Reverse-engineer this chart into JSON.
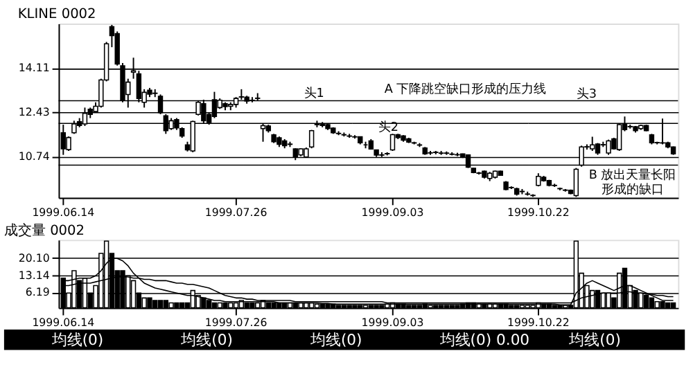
{
  "chart_data": [
    {
      "type": "candlestick",
      "title": "KLINE 0002",
      "categories": [
        "1999.06.14",
        null,
        null,
        null,
        null,
        null,
        null,
        null,
        null,
        null,
        null,
        null,
        null,
        null,
        null,
        null,
        null,
        null,
        null,
        null,
        null,
        null,
        null,
        null,
        null,
        null,
        null,
        null,
        null,
        null,
        null,
        null,
        "1999.07.26",
        null,
        null,
        null,
        null,
        null,
        null,
        null,
        null,
        null,
        null,
        null,
        null,
        null,
        null,
        null,
        null,
        null,
        null,
        null,
        null,
        null,
        null,
        null,
        null,
        null,
        null,
        null,
        null,
        "1999.09.03",
        null,
        null,
        null,
        null,
        null,
        null,
        null,
        null,
        null,
        null,
        null,
        null,
        null,
        null,
        null,
        null,
        null,
        null,
        null,
        null,
        null,
        null,
        null,
        null,
        null,
        null,
        "1999.10.22",
        null,
        null,
        null,
        null,
        null,
        null,
        null,
        null,
        null,
        null,
        null,
        null,
        null,
        null,
        null,
        null,
        null,
        null,
        null,
        null,
        null,
        null,
        null,
        null,
        null
      ],
      "ohlc": [
        [
          11.64,
          11.95,
          10.8,
          11.03
        ],
        [
          11.0,
          11.5,
          10.95,
          11.46
        ],
        [
          11.64,
          12.1,
          11.6,
          11.98
        ],
        [
          12.06,
          12.2,
          11.85,
          11.92
        ],
        [
          11.98,
          12.6,
          11.9,
          12.38
        ],
        [
          12.54,
          12.6,
          12.2,
          12.34
        ],
        [
          12.45,
          12.8,
          12.4,
          12.65
        ],
        [
          12.65,
          13.7,
          12.6,
          13.65
        ],
        [
          13.65,
          15.1,
          13.6,
          15.03
        ],
        [
          15.68,
          15.75,
          14.9,
          15.34
        ],
        [
          15.42,
          15.5,
          14.2,
          14.26
        ],
        [
          14.19,
          14.3,
          12.8,
          12.88
        ],
        [
          13.1,
          13.7,
          12.6,
          13.57
        ],
        [
          13.95,
          14.5,
          13.7,
          14.0
        ],
        [
          13.88,
          14.0,
          12.8,
          12.95
        ],
        [
          12.8,
          13.3,
          12.6,
          13.18
        ],
        [
          13.26,
          13.35,
          13.0,
          13.11
        ],
        [
          13.15,
          13.3,
          13.0,
          13.14
        ],
        [
          13.03,
          13.1,
          12.35,
          12.41
        ],
        [
          12.29,
          12.35,
          11.6,
          11.72
        ],
        [
          11.8,
          12.2,
          11.75,
          12.1
        ],
        [
          12.14,
          12.2,
          11.75,
          11.83
        ],
        [
          11.8,
          11.85,
          11.45,
          11.52
        ],
        [
          11.18,
          11.3,
          10.93,
          10.99
        ],
        [
          10.95,
          12.1,
          10.9,
          12.07
        ],
        [
          12.34,
          12.85,
          12.3,
          12.8
        ],
        [
          12.75,
          12.9,
          12.0,
          12.1
        ],
        [
          12.34,
          12.4,
          11.95,
          12.03
        ],
        [
          12.9,
          13.2,
          12.2,
          12.26
        ],
        [
          12.6,
          12.95,
          12.55,
          12.88
        ],
        [
          12.75,
          12.8,
          12.5,
          12.64
        ],
        [
          12.65,
          12.8,
          12.5,
          12.72
        ],
        [
          12.72,
          13.0,
          12.6,
          12.95
        ],
        [
          13.0,
          13.3,
          12.9,
          13.01
        ],
        [
          13.0,
          13.05,
          12.75,
          12.85
        ],
        [
          12.88,
          13.0,
          12.8,
          12.87
        ],
        [
          12.95,
          13.15,
          12.85,
          12.96
        ],
        [
          11.8,
          12.0,
          11.3,
          11.91
        ],
        [
          11.9,
          11.95,
          11.65,
          11.72
        ],
        [
          11.56,
          11.6,
          11.25,
          11.3
        ],
        [
          11.45,
          11.5,
          11.1,
          11.2
        ],
        [
          11.33,
          11.4,
          11.05,
          11.15
        ],
        [
          11.2,
          11.3,
          11.1,
          11.21
        ],
        [
          11.03,
          11.05,
          10.6,
          10.72
        ],
        [
          10.8,
          11.05,
          10.75,
          11.03
        ],
        [
          10.72,
          11.08,
          10.7,
          11.03
        ],
        [
          11.1,
          11.75,
          11.05,
          11.72
        ],
        [
          11.95,
          12.1,
          11.85,
          11.96
        ],
        [
          11.98,
          12.05,
          11.85,
          11.92
        ],
        [
          11.95,
          12.0,
          11.75,
          11.8
        ],
        [
          11.82,
          11.85,
          11.6,
          11.64
        ],
        [
          11.62,
          11.7,
          11.55,
          11.61
        ],
        [
          11.57,
          11.65,
          11.5,
          11.56
        ],
        [
          11.52,
          11.6,
          11.45,
          11.51
        ],
        [
          11.49,
          11.55,
          11.42,
          11.48
        ],
        [
          11.49,
          11.5,
          11.2,
          11.26
        ],
        [
          11.18,
          11.3,
          11.05,
          11.18
        ],
        [
          11.33,
          11.4,
          11.0,
          11.02
        ],
        [
          10.99,
          11.0,
          10.72,
          10.79
        ],
        [
          10.8,
          10.9,
          10.72,
          10.79
        ],
        [
          10.84,
          10.9,
          10.78,
          10.85
        ],
        [
          10.99,
          11.6,
          10.95,
          11.57
        ],
        [
          11.57,
          11.6,
          11.4,
          11.46
        ],
        [
          11.52,
          11.55,
          11.3,
          11.36
        ],
        [
          11.41,
          11.45,
          11.25,
          11.29
        ],
        [
          11.26,
          11.3,
          11.2,
          11.25
        ],
        [
          11.18,
          11.25,
          11.1,
          11.17
        ],
        [
          11.06,
          11.1,
          10.8,
          10.84
        ],
        [
          10.87,
          10.95,
          10.8,
          10.88
        ],
        [
          10.9,
          10.95,
          10.82,
          10.89
        ],
        [
          10.87,
          10.95,
          10.8,
          10.86
        ],
        [
          10.87,
          10.93,
          10.8,
          10.86
        ],
        [
          10.83,
          10.9,
          10.78,
          10.82
        ],
        [
          10.81,
          10.88,
          10.75,
          10.8
        ],
        [
          10.84,
          10.85,
          10.68,
          10.72
        ],
        [
          10.8,
          10.82,
          10.3,
          10.33
        ],
        [
          10.29,
          10.3,
          10.1,
          10.13
        ],
        [
          10.1,
          10.15,
          10.05,
          10.11
        ],
        [
          10.18,
          10.2,
          9.9,
          9.95
        ],
        [
          9.9,
          10.15,
          9.8,
          10.1
        ],
        [
          9.95,
          10.2,
          9.9,
          10.18
        ],
        [
          10.18,
          10.2,
          10.0,
          10.02
        ],
        [
          9.76,
          9.8,
          9.45,
          9.48
        ],
        [
          9.56,
          9.6,
          9.5,
          9.55
        ],
        [
          9.51,
          9.55,
          9.25,
          9.3
        ],
        [
          9.4,
          9.5,
          9.3,
          9.41
        ],
        [
          9.3,
          9.4,
          9.25,
          9.31
        ],
        [
          9.25,
          9.3,
          9.2,
          9.26
        ],
        [
          9.64,
          10.1,
          9.6,
          9.98
        ],
        [
          9.95,
          10.0,
          9.78,
          9.82
        ],
        [
          9.82,
          9.85,
          9.6,
          9.64
        ],
        [
          9.64,
          9.7,
          9.58,
          9.63
        ],
        [
          9.52,
          9.55,
          9.45,
          9.51
        ],
        [
          9.45,
          9.5,
          9.4,
          9.46
        ],
        [
          9.45,
          9.48,
          9.3,
          9.33
        ],
        [
          9.25,
          10.3,
          9.2,
          10.25
        ],
        [
          10.41,
          11.15,
          10.35,
          11.1
        ],
        [
          11.1,
          11.2,
          11.0,
          11.11
        ],
        [
          11.03,
          11.49,
          10.95,
          11.18
        ],
        [
          11.21,
          11.25,
          10.8,
          10.87
        ],
        [
          11.18,
          11.3,
          11.1,
          11.19
        ],
        [
          10.87,
          11.38,
          10.8,
          11.33
        ],
        [
          11.41,
          11.45,
          11.0,
          11.03
        ],
        [
          11.0,
          12.0,
          10.95,
          11.95
        ],
        [
          11.98,
          12.26,
          11.7,
          11.76
        ],
        [
          11.87,
          11.95,
          11.8,
          11.88
        ],
        [
          11.87,
          11.9,
          11.65,
          11.72
        ],
        [
          11.8,
          11.95,
          11.75,
          11.92
        ],
        [
          11.92,
          11.95,
          11.7,
          11.72
        ],
        [
          11.56,
          11.6,
          11.2,
          11.26
        ],
        [
          11.26,
          11.3,
          11.2,
          11.27
        ],
        [
          11.26,
          12.18,
          11.2,
          11.25
        ],
        [
          11.26,
          11.3,
          11.05,
          11.1
        ],
        [
          11.1,
          11.12,
          10.8,
          10.84
        ]
      ],
      "ylim": [
        9.17,
        15.8
      ],
      "yticks": [
        10.74,
        12.43,
        14.11
      ],
      "grid": "y",
      "ref_lines": [
        {
          "axis": "y",
          "value": 12.86
        },
        {
          "axis": "y",
          "value": 12.0
        },
        {
          "axis": "y",
          "value": 10.41
        }
      ],
      "annotations": [
        {
          "text": "A 下降跳空缺口形成的压力线",
          "y": 13.05
        },
        {
          "text": "头1",
          "y": 12.9
        },
        {
          "text": "头2",
          "y": 11.6
        },
        "头3",
        "B 放出天量长阳",
        "形成的缺口"
      ]
    },
    {
      "type": "bar",
      "title": "成交量 0002",
      "categories": [
        "1999.06.14",
        null,
        null,
        null,
        null,
        null,
        null,
        null,
        null,
        null,
        null,
        null,
        null,
        null,
        null,
        null,
        null,
        null,
        null,
        null,
        null,
        null,
        null,
        null,
        null,
        null,
        null,
        null,
        null,
        null,
        null,
        null,
        "1999.07.26",
        null,
        null,
        null,
        null,
        null,
        null,
        null,
        null,
        null,
        null,
        null,
        null,
        null,
        null,
        null,
        null,
        null,
        null,
        null,
        null,
        null,
        null,
        null,
        null,
        null,
        null,
        null,
        null,
        "1999.09.03",
        null,
        null,
        null,
        null,
        null,
        null,
        null,
        null,
        null,
        null,
        null,
        null,
        null,
        null,
        null,
        null,
        null,
        null,
        null,
        null,
        null,
        null,
        null,
        null,
        null,
        null,
        "1999.10.22",
        null,
        null,
        null,
        null,
        null,
        null,
        null,
        null,
        null,
        null,
        null,
        null,
        null,
        null,
        null,
        null,
        null,
        null,
        null,
        null,
        null,
        null,
        null,
        null,
        null
      ],
      "series": [
        {
          "type": "bar",
          "values": [
            12,
            6,
            15,
            11,
            12,
            6,
            9,
            22,
            27,
            22,
            15,
            15,
            13,
            11,
            6,
            4,
            4,
            3,
            3,
            3,
            2,
            2,
            2,
            2,
            7,
            5,
            4,
            3,
            2,
            2,
            2,
            2,
            2,
            3,
            2,
            2,
            2,
            3,
            2,
            2,
            2,
            2,
            2,
            2,
            2,
            2,
            2,
            1.5,
            1.5,
            1.5,
            1.5,
            1,
            1,
            1,
            1,
            1,
            1,
            1,
            1,
            1,
            1.5,
            2,
            1.5,
            1.5,
            1,
            1,
            1,
            1.5,
            1,
            1,
            1,
            1,
            1,
            1,
            1.5,
            2,
            2,
            1.5,
            1.5,
            1.5,
            1.5,
            1.5,
            1.5,
            1,
            1,
            1,
            1,
            1,
            2,
            1.5,
            1.5,
            1,
            1,
            1,
            1,
            27,
            14,
            9,
            7,
            7,
            6,
            6,
            4,
            14,
            16,
            9,
            7,
            6,
            5,
            4,
            2.5,
            2.5,
            2,
            2
          ],
          "colors": [
            "#000000",
            "#ffffff",
            "#ffffff",
            "#000000",
            "#ffffff",
            "#000000",
            "#ffffff",
            "#ffffff",
            "#ffffff",
            "#000000",
            "#000000",
            "#000000",
            "#ffffff",
            "#ffffff",
            "#000000",
            "#ffffff",
            "#000000",
            "#000000",
            "#000000",
            "#000000",
            "#ffffff",
            "#000000",
            "#000000",
            "#000000",
            "#ffffff",
            "#ffffff",
            "#000000",
            "#000000",
            "#000000",
            "#ffffff",
            "#000000",
            "#ffffff",
            "#ffffff",
            "#ffffff",
            "#000000",
            "#000000",
            "#ffffff",
            "#ffffff",
            "#000000",
            "#000000",
            "#000000",
            "#000000",
            "#ffffff",
            "#000000",
            "#ffffff",
            "#ffffff",
            "#ffffff",
            "#ffffff",
            "#000000",
            "#000000",
            "#000000",
            "#000000",
            "#000000",
            "#000000",
            "#000000",
            "#000000",
            "#ffffff",
            "#000000",
            "#000000",
            "#000000",
            "#ffffff",
            "#ffffff",
            "#000000",
            "#000000",
            "#000000",
            "#000000",
            "#000000",
            "#000000",
            "#ffffff",
            "#000000",
            "#000000",
            "#000000",
            "#000000",
            "#000000",
            "#000000",
            "#000000",
            "#000000",
            "#ffffff",
            "#000000",
            "#ffffff",
            "#ffffff",
            "#000000",
            "#000000",
            "#000000",
            "#000000",
            "#ffffff",
            "#ffffff",
            "#ffffff",
            "#ffffff",
            "#000000",
            "#000000",
            "#000000",
            "#000000",
            "#ffffff",
            "#000000",
            "#ffffff",
            "#ffffff",
            "#ffffff",
            "#ffffff",
            "#000000",
            "#ffffff",
            "#ffffff",
            "#000000",
            "#ffffff",
            "#000000",
            "#ffffff",
            "#000000",
            "#ffffff",
            "#000000",
            "#000000",
            "#ffffff",
            "#000000",
            "#000000",
            "#000000"
          ]
        },
        {
          "type": "line",
          "color": "#000000",
          "values": [
            11,
            11,
            11.5,
            12,
            12,
            12,
            13,
            15,
            18,
            20,
            20,
            19,
            17,
            14,
            12,
            10,
            9,
            8,
            7.5,
            7,
            6.5,
            6,
            5.5,
            5,
            5,
            4.5,
            4,
            3.5,
            3,
            3,
            2.5,
            2.5,
            2.5,
            2.5,
            2.5,
            2.5,
            2.5,
            2.5,
            2.5,
            2.5,
            2,
            2,
            2,
            2,
            2,
            2,
            2,
            2,
            1.8,
            1.8,
            1.5,
            1.5,
            1.5,
            1.5,
            1.5,
            1.5,
            1.5,
            1.5,
            1.5,
            1.5,
            1.5,
            1.5,
            1.5,
            1.5,
            1.5,
            1.5,
            1.5,
            1.5,
            1.5,
            1.5,
            1.5,
            1.5,
            1.5,
            1.5,
            1.5,
            1.5,
            1.5,
            1.5,
            1.5,
            1.5,
            1.5,
            1.5,
            1.5,
            1.5,
            1.5,
            1.5,
            1.5,
            1.5,
            1.5,
            1.5,
            1.5,
            1.5,
            1.2,
            1.2,
            1.2,
            6,
            8,
            10,
            11,
            10,
            9,
            8,
            7,
            8,
            9,
            9,
            8,
            7,
            6,
            5,
            4,
            3,
            3,
            3
          ]
        },
        {
          "type": "line",
          "color": "#000000",
          "values": [
            9,
            9,
            9.5,
            10,
            10,
            10,
            10.5,
            11,
            11.5,
            12,
            12.5,
            12.5,
            12.5,
            12,
            12,
            11.5,
            11.5,
            11,
            11,
            11,
            10.5,
            10,
            10,
            9.5,
            9.5,
            9,
            8.5,
            8,
            7,
            6,
            5,
            4.5,
            4,
            4,
            3.5,
            3.5,
            3,
            3,
            3,
            3,
            3,
            3,
            3,
            2.5,
            2.5,
            2.5,
            2.5,
            2.5,
            2.5,
            2.5,
            2.5,
            2.5,
            2.5,
            2.5,
            2.5,
            2.5,
            2.5,
            2.5,
            2.5,
            2.5,
            2,
            2,
            2,
            2,
            2,
            2,
            2,
            2,
            2,
            2,
            2,
            2,
            2,
            2,
            2,
            2,
            2,
            2,
            2,
            2,
            2,
            2,
            2,
            2,
            2,
            2,
            2,
            2,
            2,
            2,
            2,
            2,
            2,
            2,
            2,
            3,
            4,
            4.5,
            5,
            5.5,
            6,
            6,
            6,
            6,
            6.5,
            6.5,
            6,
            6,
            5.5,
            5.5,
            5,
            5,
            4.5,
            4.5
          ]
        }
      ],
      "ylim": [
        0,
        27.5
      ],
      "yticks": [
        6.19,
        13.14,
        {
          "value": 20.1,
          "label": "20.10"
        }
      ],
      "grid": "y",
      "annotations": [
        "均线(0)",
        "均线(0)",
        "均线(0)",
        "均线(0) 0.00",
        "均线(0)"
      ]
    }
  ]
}
